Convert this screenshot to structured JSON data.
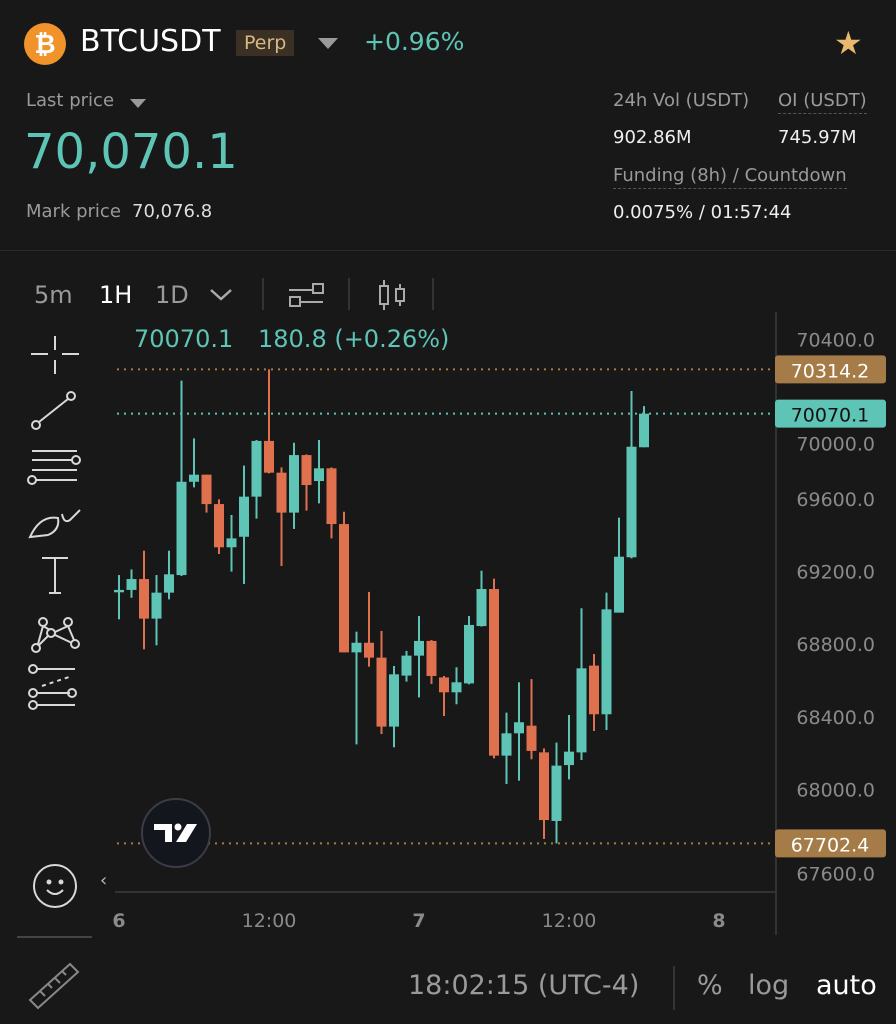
{
  "header": {
    "symbol": "BTCUSDT",
    "coin_icon": "bitcoin-icon",
    "badge": "Perp",
    "change": "+0.96%",
    "favorite_icon": "star-icon"
  },
  "stats": {
    "last_price_label": "Last price",
    "last_price": "70,070.1",
    "mark_price_label": "Mark price",
    "mark_price": "70,076.8",
    "vol_label": "24h Vol (USDT)",
    "vol": "902.86M",
    "oi_label": "OI (USDT)",
    "oi": "745.97M",
    "funding_label": "Funding (8h) / Countdown",
    "funding": "0.0075%",
    "countdown": "01:57:44",
    "funding_sep": "/"
  },
  "toolbar": {
    "intervals": [
      "5m",
      "1H",
      "1D"
    ],
    "active_interval": "1H"
  },
  "legend": {
    "price": "70070.1",
    "change": "180.8 (+0.26%)"
  },
  "drawing_tools": [
    "crosshair-icon",
    "trend-line-icon",
    "fib-lines-icon",
    "brush-icon",
    "text-icon",
    "pattern-icon",
    "forecast-icon",
    "emoji-icon",
    "ruler-icon"
  ],
  "footer": {
    "time": "18:02:15 (UTC-4)",
    "percent": "%",
    "log": "log",
    "auto": "auto"
  },
  "colors": {
    "up": "#5ec4b6",
    "down": "#e0714f",
    "high_low_label": "#a57c47",
    "background": "#181818"
  },
  "chart_data": {
    "type": "candlestick",
    "interval": "1H",
    "y_ticks": [
      70400,
      70000,
      69600,
      69200,
      68800,
      68400,
      68000,
      67600
    ],
    "y_tick_labels": [
      "70400.0",
      "70000.0",
      "69600.0",
      "69200.0",
      "68800.0",
      "68400.0",
      "68000.0",
      "67600.0"
    ],
    "x_ticks": [
      {
        "label": "6",
        "at": "6 00:00"
      },
      {
        "label": "12:00",
        "at": "6 12:00"
      },
      {
        "label": "7",
        "at": "7 00:00"
      },
      {
        "label": "12:00",
        "at": "7 12:00"
      },
      {
        "label": "8",
        "at": "8 00:00"
      }
    ],
    "markers": {
      "high": "70314.2",
      "last": "70070.1",
      "low": "67702.4"
    },
    "candles": [
      {
        "t": "6 00:00",
        "o": 69086,
        "h": 69181,
        "l": 68937,
        "c": 69099
      },
      {
        "t": "6 01:00",
        "o": 69099,
        "h": 69212,
        "l": 69056,
        "c": 69159
      },
      {
        "t": "6 02:00",
        "o": 69159,
        "h": 69315,
        "l": 68772,
        "c": 68941
      },
      {
        "t": "6 03:00",
        "o": 68941,
        "h": 69181,
        "l": 68794,
        "c": 69084
      },
      {
        "t": "6 04:00",
        "o": 69084,
        "h": 69315,
        "l": 69047,
        "c": 69185
      },
      {
        "t": "6 05:00",
        "o": 69181,
        "h": 70252,
        "l": 69176,
        "c": 69695
      },
      {
        "t": "6 06:00",
        "o": 69695,
        "h": 69934,
        "l": 69664,
        "c": 69734
      },
      {
        "t": "6 07:00",
        "o": 69734,
        "h": 69734,
        "l": 69525,
        "c": 69572
      },
      {
        "t": "6 08:00",
        "o": 69572,
        "h": 69598,
        "l": 69297,
        "c": 69334
      },
      {
        "t": "6 09:00",
        "o": 69334,
        "h": 69512,
        "l": 69200,
        "c": 69383
      },
      {
        "t": "6 10:00",
        "o": 69392,
        "h": 69784,
        "l": 69132,
        "c": 69613
      },
      {
        "t": "6 11:00",
        "o": 69613,
        "h": 69925,
        "l": 69492,
        "c": 69920
      },
      {
        "t": "6 12:00",
        "o": 69920,
        "h": 70314.2,
        "l": 69741,
        "c": 69745
      },
      {
        "t": "6 13:00",
        "o": 69745,
        "h": 69774,
        "l": 69231,
        "c": 69525
      },
      {
        "t": "6 14:00",
        "o": 69525,
        "h": 69910,
        "l": 69435,
        "c": 69842
      },
      {
        "t": "6 15:00",
        "o": 69842,
        "h": 69846,
        "l": 69536,
        "c": 69677
      },
      {
        "t": "6 16:00",
        "o": 69699,
        "h": 69925,
        "l": 69576,
        "c": 69769
      },
      {
        "t": "6 17:00",
        "o": 69769,
        "h": 69774,
        "l": 69383,
        "c": 69462
      },
      {
        "t": "6 18:00",
        "o": 69462,
        "h": 69530,
        "l": 68755,
        "c": 68755
      },
      {
        "t": "6 19:00",
        "o": 68755,
        "h": 68869,
        "l": 68248,
        "c": 68808
      },
      {
        "t": "6 20:00",
        "o": 68808,
        "h": 69088,
        "l": 68676,
        "c": 68726
      },
      {
        "t": "6 21:00",
        "o": 68726,
        "h": 68873,
        "l": 68305,
        "c": 68346
      },
      {
        "t": "6 22:00",
        "o": 68346,
        "h": 68680,
        "l": 68232,
        "c": 68634
      },
      {
        "t": "6 23:00",
        "o": 68627,
        "h": 68763,
        "l": 68594,
        "c": 68737
      },
      {
        "t": "7 00:00",
        "o": 68737,
        "h": 68955,
        "l": 68507,
        "c": 68818
      },
      {
        "t": "7 01:00",
        "o": 68818,
        "h": 68823,
        "l": 68581,
        "c": 68625
      },
      {
        "t": "7 02:00",
        "o": 68617,
        "h": 68625,
        "l": 68404,
        "c": 68535
      },
      {
        "t": "7 03:00",
        "o": 68535,
        "h": 68673,
        "l": 68469,
        "c": 68590
      },
      {
        "t": "7 04:00",
        "o": 68584,
        "h": 68955,
        "l": 68579,
        "c": 68906
      },
      {
        "t": "7 05:00",
        "o": 68900,
        "h": 69205,
        "l": 68897,
        "c": 69104
      },
      {
        "t": "7 06:00",
        "o": 69104,
        "h": 69161,
        "l": 68171,
        "c": 68186
      },
      {
        "t": "7 07:00",
        "o": 68186,
        "h": 68423,
        "l": 68030,
        "c": 68309
      },
      {
        "t": "7 08:00",
        "o": 68309,
        "h": 68590,
        "l": 68048,
        "c": 68370
      },
      {
        "t": "7 09:00",
        "o": 68351,
        "h": 68608,
        "l": 68166,
        "c": 68212
      },
      {
        "t": "7 10:00",
        "o": 68204,
        "h": 68226,
        "l": 67727,
        "c": 67831
      },
      {
        "t": "7 11:00",
        "o": 67826,
        "h": 68258,
        "l": 67702.4,
        "c": 68131
      },
      {
        "t": "7 12:00",
        "o": 68134,
        "h": 68410,
        "l": 68055,
        "c": 68208
      },
      {
        "t": "7 13:00",
        "o": 68204,
        "h": 68998,
        "l": 68162,
        "c": 68667
      },
      {
        "t": "7 14:00",
        "o": 68682,
        "h": 68746,
        "l": 68322,
        "c": 68414
      },
      {
        "t": "7 15:00",
        "o": 68414,
        "h": 69084,
        "l": 68327,
        "c": 68992
      },
      {
        "t": "7 16:00",
        "o": 68974,
        "h": 69497,
        "l": 68974,
        "c": 69282
      },
      {
        "t": "7 17:00",
        "o": 69279,
        "h": 70195,
        "l": 69273,
        "c": 69888
      },
      {
        "t": "7 18:00",
        "o": 69885,
        "h": 70112,
        "l": 69885,
        "c": 70070.1
      }
    ]
  }
}
